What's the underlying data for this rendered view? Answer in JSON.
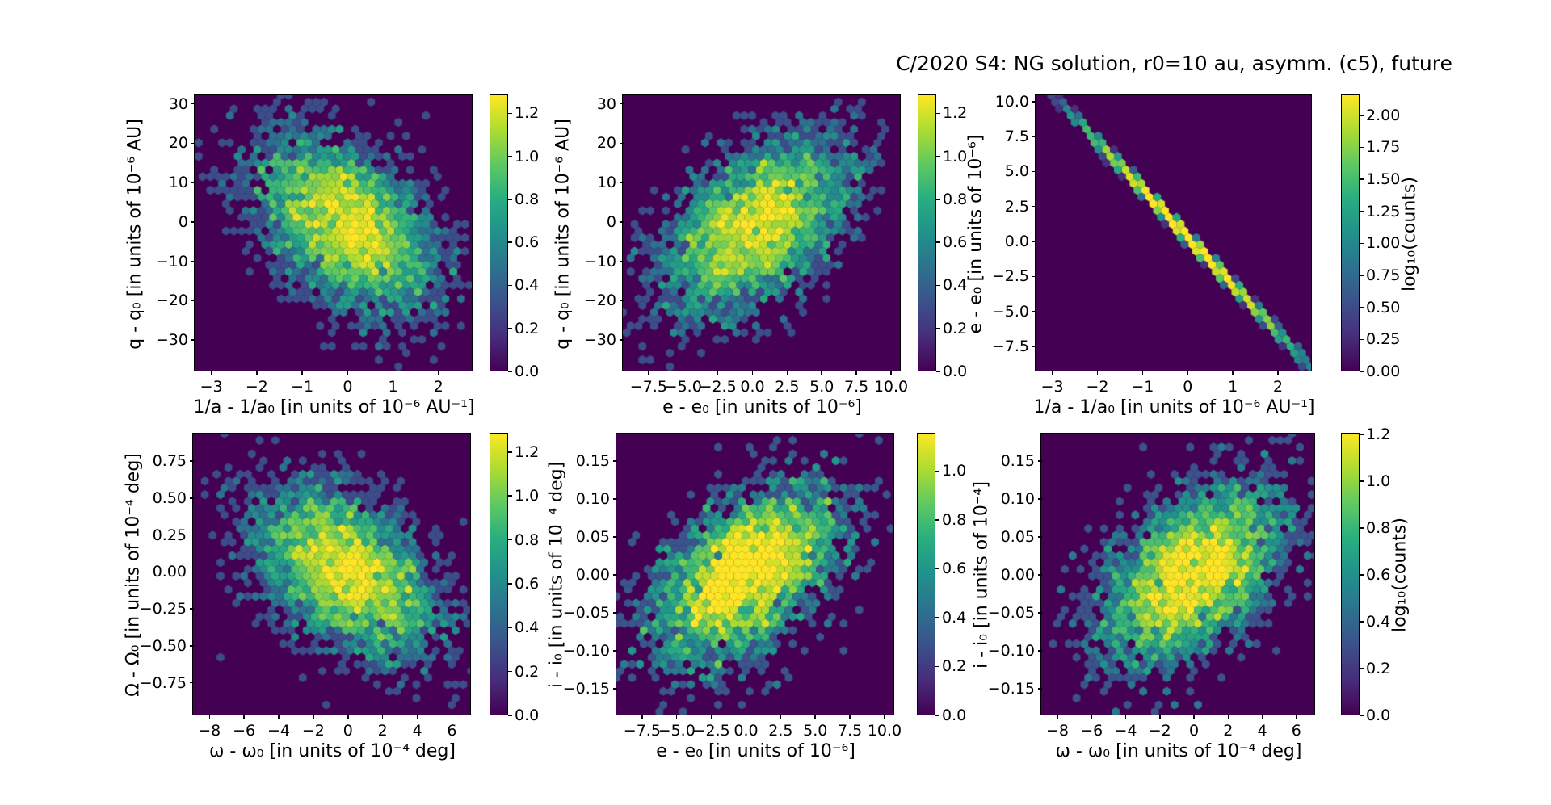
{
  "title": "C/2020 S4: NG solution, r0=10 au, asymm. (c5), future",
  "chart_data": {
    "type": "hexbin",
    "colormap": "viridis",
    "background_color": "#440154",
    "grid": false,
    "viridis_stops": [
      [
        0,
        "#440154"
      ],
      [
        0.125,
        "#472d7b"
      ],
      [
        0.25,
        "#3b528b"
      ],
      [
        0.375,
        "#2c728e"
      ],
      [
        0.5,
        "#21918c"
      ],
      [
        0.625,
        "#28ae80"
      ],
      [
        0.75,
        "#5ec962"
      ],
      [
        0.875,
        "#addc30"
      ],
      [
        1,
        "#fde725"
      ]
    ],
    "panels": [
      {
        "position": "top-left",
        "xlabel": "1/a - 1/a₀ [in units of 10⁻⁶ AU⁻¹]",
        "ylabel": "q - q₀ [in units of 10⁻⁶ AU]",
        "xlim": [
          -3.35,
          2.75
        ],
        "ylim": [
          -38,
          32
        ],
        "xticks": [
          -3,
          -2,
          -1,
          0,
          1,
          2
        ],
        "xtick_labels": [
          "−3",
          "−2",
          "−1",
          "0",
          "1",
          "2"
        ],
        "yticks": [
          30,
          20,
          10,
          0,
          -10,
          -20,
          -30
        ],
        "ytick_labels": [
          "30",
          "20",
          "10",
          "0",
          "−10",
          "−20",
          "−30"
        ],
        "colorbar": {
          "vmin": 0,
          "vmax": 1.28,
          "tick_values": [
            1.2,
            1.0,
            0.8,
            0.6,
            0.4,
            0.2,
            0.0
          ],
          "tick_labels": [
            "1.2",
            "1.0",
            "0.8",
            "0.6",
            "0.4",
            "0.2",
            "0.0"
          ],
          "label": ""
        },
        "distribution": {
          "shape": "gaussian",
          "n": 3500,
          "center": [
            0,
            -1
          ],
          "sigma": [
            0.97,
            11.0
          ],
          "rho": -0.45
        }
      },
      {
        "position": "top-middle",
        "xlabel": "e - e₀ [in units of 10⁻⁶]",
        "ylabel": "q - q₀ [in units of 10⁻⁶ AU]",
        "xlim": [
          -9.3,
          10.7
        ],
        "ylim": [
          -38,
          32
        ],
        "xticks": [
          -7.5,
          -5.0,
          -2.5,
          0.0,
          2.5,
          5.0,
          7.5,
          10.0
        ],
        "xtick_labels": [
          "−7.5",
          "−5.0",
          "−2.5",
          "0.0",
          "2.5",
          "5.0",
          "7.5",
          "10.0"
        ],
        "yticks": [
          30,
          20,
          10,
          0,
          -10,
          -20,
          -30
        ],
        "ytick_labels": [
          "30",
          "20",
          "10",
          "0",
          "−10",
          "−20",
          "−30"
        ],
        "colorbar": {
          "vmin": 0,
          "vmax": 1.28,
          "tick_values": [
            1.2,
            1.0,
            0.8,
            0.6,
            0.4,
            0.2,
            0.0
          ],
          "tick_labels": [
            "1.2",
            "1.0",
            "0.8",
            "0.6",
            "0.4",
            "0.2",
            "0.0"
          ],
          "label": ""
        },
        "distribution": {
          "shape": "gaussian",
          "n": 3500,
          "center": [
            0.3,
            -1
          ],
          "sigma": [
            3.3,
            11.0
          ],
          "rho": 0.5
        }
      },
      {
        "position": "top-right",
        "xlabel": "1/a - 1/a₀ [in units of 10⁻⁶ AU⁻¹]",
        "ylabel": "e - e₀ [in units of 10⁻⁶]",
        "xlim": [
          -3.35,
          2.75
        ],
        "ylim": [
          -9.3,
          10.4
        ],
        "xticks": [
          -3,
          -2,
          -1,
          0,
          1,
          2
        ],
        "xtick_labels": [
          "−3",
          "−2",
          "−1",
          "0",
          "1",
          "2"
        ],
        "yticks": [
          10.0,
          7.5,
          5.0,
          2.5,
          0.0,
          -2.5,
          -5.0,
          -7.5
        ],
        "ytick_labels": [
          "10.0",
          "7.5",
          "5.0",
          "2.5",
          "0.0",
          "−2.5",
          "−5.0",
          "−7.5"
        ],
        "colorbar": {
          "vmin": 0,
          "vmax": 2.15,
          "tick_values": [
            2.0,
            1.75,
            1.5,
            1.25,
            1.0,
            0.75,
            0.5,
            0.25,
            0.0
          ],
          "tick_labels": [
            "2.00",
            "1.75",
            "1.50",
            "1.25",
            "1.00",
            "0.75",
            "0.50",
            "0.25",
            "0.00"
          ],
          "label": "log₁₀(counts)"
        },
        "distribution": {
          "shape": "line",
          "n": 5200,
          "slope": -3.43,
          "intercept": 0.3,
          "sigma_x": 1.05,
          "noise": 0.13
        }
      },
      {
        "position": "bottom-left",
        "xlabel": "ω - ω₀ [in units of 10⁻⁴ deg]",
        "ylabel": "Ω - Ω₀ [in units of 10⁻⁴ deg]",
        "xlim": [
          -8.9,
          7.1
        ],
        "ylim": [
          -0.97,
          0.93
        ],
        "xticks": [
          -8,
          -6,
          -4,
          -2,
          0,
          2,
          4,
          6
        ],
        "xtick_labels": [
          "−8",
          "−6",
          "−4",
          "−2",
          "0",
          "2",
          "4",
          "6"
        ],
        "yticks": [
          0.75,
          0.5,
          0.25,
          0.0,
          -0.25,
          -0.5,
          -0.75
        ],
        "ytick_labels": [
          "0.75",
          "0.50",
          "0.25",
          "0.00",
          "−0.25",
          "−0.50",
          "−0.75"
        ],
        "colorbar": {
          "vmin": 0,
          "vmax": 1.28,
          "tick_values": [
            1.2,
            1.0,
            0.8,
            0.6,
            0.4,
            0.2,
            0.0
          ],
          "tick_labels": [
            "1.2",
            "1.0",
            "0.8",
            "0.6",
            "0.4",
            "0.2",
            "0.0"
          ],
          "label": ""
        },
        "distribution": {
          "shape": "gaussian",
          "n": 3500,
          "center": [
            0,
            0
          ],
          "sigma": [
            2.6,
            0.285
          ],
          "rho": -0.45
        }
      },
      {
        "position": "bottom-middle",
        "xlabel": "e - e₀ [in units of 10⁻⁶]",
        "ylabel": "i - i₀ [in units of 10⁻⁴ deg]",
        "xlim": [
          -9.3,
          10.7
        ],
        "ylim": [
          -0.185,
          0.185
        ],
        "xticks": [
          -7.5,
          -5.0,
          -2.5,
          0.0,
          2.5,
          5.0,
          7.5,
          10.0
        ],
        "xtick_labels": [
          "−7.5",
          "−5.0",
          "−2.5",
          "0.0",
          "2.5",
          "5.0",
          "7.5",
          "10.0"
        ],
        "yticks": [
          0.15,
          0.1,
          0.05,
          0.0,
          -0.05,
          -0.1,
          -0.15
        ],
        "ytick_labels": [
          "0.15",
          "0.10",
          "0.05",
          "0.00",
          "−0.05",
          "−0.10",
          "−0.15"
        ],
        "colorbar": {
          "vmin": 0,
          "vmax": 1.15,
          "tick_values": [
            1.0,
            0.8,
            0.6,
            0.4,
            0.2,
            0.0
          ],
          "tick_labels": [
            "1.0",
            "0.8",
            "0.6",
            "0.4",
            "0.2",
            "0.0"
          ],
          "label": ""
        },
        "distribution": {
          "shape": "gaussian",
          "n": 3500,
          "center": [
            0,
            0
          ],
          "sigma": [
            3.3,
            0.057
          ],
          "rho": 0.5
        }
      },
      {
        "position": "bottom-right",
        "xlabel": "ω - ω₀ [in units of 10⁻⁴ deg]",
        "ylabel": "i - i₀ [in units of 10⁻⁴]",
        "xlim": [
          -8.9,
          7.1
        ],
        "ylim": [
          -0.185,
          0.185
        ],
        "xticks": [
          -8,
          -6,
          -4,
          -2,
          0,
          2,
          4,
          6
        ],
        "xtick_labels": [
          "−8",
          "−6",
          "−4",
          "−2",
          "0",
          "2",
          "4",
          "6"
        ],
        "yticks": [
          0.15,
          0.1,
          0.05,
          0.0,
          -0.05,
          -0.1,
          -0.15
        ],
        "ytick_labels": [
          "0.15",
          "0.10",
          "0.05",
          "0.00",
          "−0.05",
          "−0.10",
          "−0.15"
        ],
        "colorbar": {
          "vmin": 0,
          "vmax": 1.2,
          "tick_values": [
            1.2,
            1.0,
            0.8,
            0.6,
            0.4,
            0.2,
            0.0
          ],
          "tick_labels": [
            "1.2",
            "1.0",
            "0.8",
            "0.6",
            "0.4",
            "0.2",
            "0.0"
          ],
          "label": "log₁₀(counts)"
        },
        "distribution": {
          "shape": "gaussian",
          "n": 3500,
          "center": [
            0,
            0
          ],
          "sigma": [
            2.6,
            0.057
          ],
          "rho": 0.45
        }
      }
    ]
  }
}
